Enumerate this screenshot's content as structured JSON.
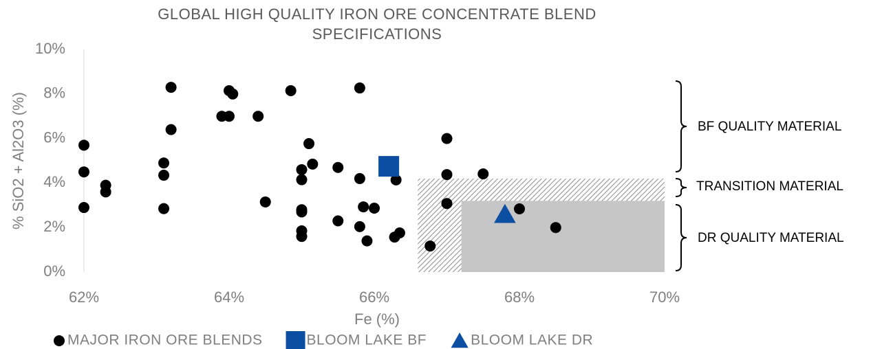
{
  "chart_data": {
    "type": "scatter",
    "title": "GLOBAL HIGH QUALITY IRON ORE CONCENTRATE BLEND SPECIFICATIONS",
    "x_label": "Fe (%)",
    "y_label": "% SiO2 + Al2O3 (%)",
    "xlim": [
      62,
      70
    ],
    "ylim": [
      0,
      10
    ],
    "xticks": [
      {
        "value": 62,
        "label": "62%"
      },
      {
        "value": 64,
        "label": "64%"
      },
      {
        "value": 66,
        "label": "66%"
      },
      {
        "value": 68,
        "label": "68%"
      },
      {
        "value": 70,
        "label": "70%"
      }
    ],
    "yticks": [
      {
        "value": 0,
        "label": "0%"
      },
      {
        "value": 2,
        "label": "2%"
      },
      {
        "value": 4,
        "label": "4%"
      },
      {
        "value": 6,
        "label": "6%"
      },
      {
        "value": 8,
        "label": "8%"
      },
      {
        "value": 10,
        "label": "10%"
      }
    ],
    "grid": false,
    "legend": "bottom",
    "regions": [
      {
        "x": [
          66.6,
          70
        ],
        "y": [
          0,
          4.2
        ],
        "color": "#8c8c8c",
        "pattern": "hatch"
      },
      {
        "x": [
          67.2,
          70
        ],
        "y": [
          0,
          3.2
        ],
        "color": "#c6c6c6",
        "pattern": "solid"
      }
    ],
    "annotations": [
      "BF QUALITY MATERIAL",
      "TRANSITION MATERIAL",
      "DR QUALITY MATERIAL"
    ],
    "series": [
      {
        "name": "MAJOR IRON ORE BLENDS",
        "color": "#000000",
        "marker": "circle",
        "x": [
          62.0,
          62.0,
          62.0,
          62.3,
          62.3,
          63.2,
          63.2,
          63.1,
          63.1,
          63.1,
          63.9,
          64.0,
          64.0,
          64.05,
          64.4,
          64.5,
          64.85,
          65.1,
          65.15,
          65.0,
          65.0,
          65.0,
          65.0,
          65.0,
          65.0,
          65.5,
          65.5,
          65.8,
          65.8,
          65.85,
          66.0,
          65.8,
          65.9,
          66.3,
          66.28,
          66.35,
          66.77,
          67.0,
          67.0,
          67.0,
          67.5,
          68.0,
          68.5
        ],
        "values": [
          5.7,
          4.5,
          2.9,
          3.9,
          3.6,
          8.3,
          6.4,
          4.9,
          4.35,
          2.85,
          7.0,
          7.0,
          8.15,
          8.0,
          7.0,
          3.15,
          8.15,
          5.77,
          4.85,
          4.6,
          4.15,
          2.8,
          2.7,
          1.85,
          1.6,
          4.7,
          2.3,
          8.27,
          4.2,
          2.93,
          2.87,
          2.04,
          1.4,
          4.14,
          1.57,
          1.76,
          1.17,
          6.0,
          4.38,
          3.08,
          4.41,
          2.84,
          2.0
        ]
      },
      {
        "name": "BLOOM LAKE BF",
        "color": "#0b4ea2",
        "marker": "square",
        "x": [
          66.2
        ],
        "values": [
          4.75
        ]
      },
      {
        "name": "BLOOM LAKE DR",
        "color": "#0b4ea2",
        "marker": "triangle",
        "x": [
          67.8
        ],
        "values": [
          2.6
        ]
      }
    ]
  }
}
